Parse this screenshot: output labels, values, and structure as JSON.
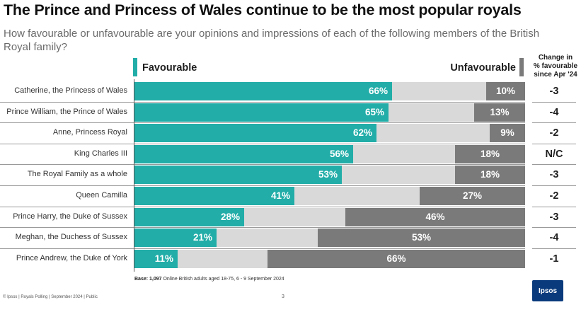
{
  "title": "The Prince and Princess of Wales continue to be the most popular royals",
  "subtitle": "How favourable or unfavourable are your opinions and impressions of each of the following members of the British Royal family?",
  "legend": {
    "favourable": "Favourable",
    "unfavourable": "Unfavourable"
  },
  "change_header": [
    "Change in",
    "% favourable",
    "since Apr '24"
  ],
  "colors": {
    "favourable": "#22ada8",
    "neutral": "#d9d9d9",
    "unfavourable": "#7a7a7a"
  },
  "base_note": {
    "bold": "Base: 1,097",
    "rest": " Online British adults aged 18-75, 6 - 9 September 2024"
  },
  "footer": "© Ipsos | Royals Polling | September 2024 | Public",
  "page_number": "3",
  "logo": "Ipsos",
  "chart_data": {
    "type": "bar",
    "orientation": "horizontal",
    "stacked": true,
    "xlim": [
      0,
      100
    ],
    "categories": [
      "Catherine, the Princess of Wales",
      "Prince William, the Prince of Wales",
      "Anne, Princess Royal",
      "King Charles III",
      "The Royal Family as a whole",
      "Queen Camilla",
      "Prince Harry, the Duke of Sussex",
      "Meghan, the Duchess of Sussex",
      "Prince Andrew, the Duke of York"
    ],
    "series": [
      {
        "name": "Favourable",
        "values": [
          66,
          65,
          62,
          56,
          53,
          41,
          28,
          21,
          11
        ]
      },
      {
        "name": "Unfavourable",
        "values": [
          10,
          13,
          9,
          18,
          18,
          27,
          46,
          53,
          66
        ]
      }
    ],
    "change_since_apr_24": [
      "-3",
      "-4",
      "-2",
      "N/C",
      "-3",
      "-2",
      "-3",
      "-4",
      "-1"
    ]
  }
}
